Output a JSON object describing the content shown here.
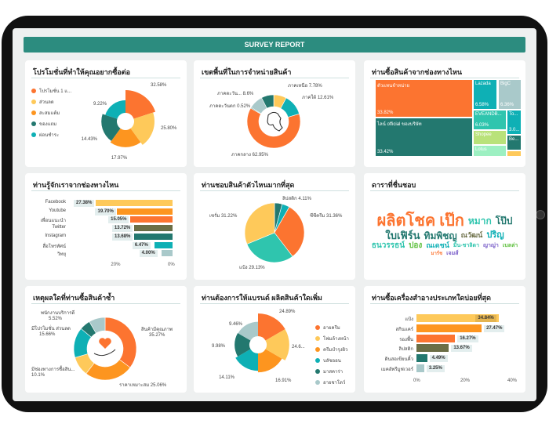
{
  "header": {
    "title": "SURVEY REPORT"
  },
  "colors": {
    "orange": "#fc7430",
    "yellow": "#fec95a",
    "amber": "#fd951f",
    "darkteal": "#23786f",
    "teal": "#0eb0b5",
    "grey": "#a9c9ca",
    "olive": "#6b6e46",
    "mint": "#2fc5ae",
    "lime": "#b9e27a",
    "palegreen": "#9df0c2"
  },
  "promo": {
    "title": "โปรโมชั่นที่ทำให้คุณอยากซื้อต่อ",
    "items": [
      {
        "label": "โปรโมชั่น 1 แ...",
        "value": 32.58,
        "pct": "32.58%",
        "color": "#fc7430"
      },
      {
        "label": "ส่วนลด",
        "value": 25.8,
        "pct": "25.80%",
        "color": "#fec95a"
      },
      {
        "label": "สะสมแต้ม",
        "value": 17.97,
        "pct": "17.97%",
        "color": "#fd951f"
      },
      {
        "label": "ของแถม",
        "value": 14.43,
        "pct": "14.43%",
        "color": "#23786f"
      },
      {
        "label": "ผ่อนชำระ",
        "value": 9.22,
        "pct": "9.22%",
        "color": "#0eb0b5"
      }
    ]
  },
  "region": {
    "title": "เขตพื้นที่ในการจำหน่ายสินค้า",
    "items": [
      {
        "label": "ภาคเหนือ 7.78%",
        "value": 7.78,
        "color": "#fec95a"
      },
      {
        "label": "ภาคใต้ 12.61%",
        "value": 12.61,
        "color": "#0eb0b5"
      },
      {
        "label": "ภาคกลาง 62.95%",
        "value": 62.95,
        "color": "#fc7430"
      },
      {
        "label": "ภาคตะวันตก 0.52%",
        "value": 0.52,
        "color": "#23786f"
      },
      {
        "label": "ภาคตะวัน... 8.6%",
        "value": 8.6,
        "color": "#a9c9ca"
      },
      {
        "label": "",
        "value": 7.54,
        "color": "#23786f"
      }
    ]
  },
  "channel": {
    "title": "ท่านซื้อสินค้าจากช่องทางไหน",
    "items": [
      {
        "label": "ตัวแทนจำหน่าย",
        "pct": "33.82%",
        "color": "#fc7430"
      },
      {
        "label": "ไลน์ official ของบริษัท",
        "pct": "33.42%",
        "color": "#23786f"
      },
      {
        "label": "Lazada",
        "pct": "6.58%",
        "color": "#0eb0b5"
      },
      {
        "label": "BigC",
        "pct": "6.36%",
        "color": "#a9c9ca"
      },
      {
        "label": "EVEANDB...",
        "pct": "6.03%",
        "color": "#2fc5ae"
      },
      {
        "label": "To...",
        "pct": "3.0...",
        "color": "#0eb0b5"
      },
      {
        "label": "Shopee",
        "pct": "",
        "color": "#b9e27a"
      },
      {
        "label": "Lotus",
        "pct": "",
        "color": "#9df0c2"
      },
      {
        "label": "Be...",
        "pct": "",
        "color": "#23786f"
      },
      {
        "label": "",
        "pct": "",
        "color": "#fec95a"
      }
    ]
  },
  "known": {
    "title": "ท่านรู้จักเราจากช่องทางไหน",
    "axis": [
      "20%",
      "0%"
    ],
    "items": [
      {
        "label": "Facebook",
        "value": 27.38,
        "pct": "27.38%",
        "color": "#fec95a"
      },
      {
        "label": "Youtube",
        "value": 19.7,
        "pct": "19.70%",
        "color": "#fd951f"
      },
      {
        "label": "เพื่อนแนะนำ",
        "value": 15.05,
        "pct": "15.05%",
        "color": "#fc7430"
      },
      {
        "label": "Twitter",
        "value": 13.72,
        "pct": "13.72%",
        "color": "#6b6e46"
      },
      {
        "label": "Instagram",
        "value": 13.68,
        "pct": "13.68%",
        "color": "#23786f"
      },
      {
        "label": "สื่อโทรทัศน์",
        "value": 6.47,
        "pct": "6.47%",
        "color": "#0eb0b5"
      },
      {
        "label": "วิทยุ",
        "value": 4.0,
        "pct": "4.00%",
        "color": "#a9c9ca"
      }
    ]
  },
  "fav": {
    "title": "ท่านชอบสินค้าตัวไหนมากที่สุด",
    "items": [
      {
        "label": "",
        "value": 4.18,
        "color": "#23786f"
      },
      {
        "label": "ลิปสติก 4.11%",
        "value": 4.11,
        "color": "#0eb0b5"
      },
      {
        "label": "ซีซีครีม 31.36%",
        "value": 31.36,
        "color": "#fc7430"
      },
      {
        "label": "แป้ง 29.13%",
        "value": 29.13,
        "color": "#2fc5ae"
      },
      {
        "label": "เซรั่ม 31.22%",
        "value": 31.22,
        "color": "#fec95a"
      }
    ]
  },
  "stars": {
    "title": "ดาราที่ชื่นชอบ",
    "words": [
      {
        "w": "ผลิตโชค",
        "c": "#fc7430",
        "s": 20
      },
      {
        "w": "เป๊ก",
        "c": "#fc7430",
        "s": 20
      },
      {
        "w": "หมาก",
        "c": "#2fc5ae",
        "s": 12
      },
      {
        "w": "โป๊ป",
        "c": "#23786f",
        "s": 12
      },
      {
        "w": "ใบเฟิร์น",
        "c": "#23786f",
        "s": 13
      },
      {
        "w": "ทิมพิชญ",
        "c": "#23786f",
        "s": 12
      },
      {
        "w": "ณวัฒน์",
        "c": "#6b6e46",
        "s": 9
      },
      {
        "w": "ปริญ",
        "c": "#0eb0b5",
        "s": 11
      },
      {
        "w": "ธนวรรธน์",
        "c": "#2fc5ae",
        "s": 10
      },
      {
        "w": "ปอง",
        "c": "#5bbf3a",
        "s": 10
      },
      {
        "w": "ณเดชน์",
        "c": "#0eb0b5",
        "s": 9
      },
      {
        "w": "มิ้น-ชาลิดา",
        "c": "#2fc5ae",
        "s": 7
      },
      {
        "w": "ญาญ่า",
        "c": "#7a5fc9",
        "s": 7
      },
      {
        "w": "เบลล่า",
        "c": "#5bbf3a",
        "s": 7
      },
      {
        "w": "มาร์ช",
        "c": "#fc7430",
        "s": 6
      },
      {
        "w": "เจมส์",
        "c": "#7a5fc9",
        "s": 7
      }
    ]
  },
  "reason": {
    "title": "เหตุผลใดที่ท่านซื้อสินค้าซ้ำ",
    "items": [
      {
        "label": "สินค้ามีคุณภาพ",
        "pct": "35.27%",
        "value": 35.27,
        "color": "#fc7430"
      },
      {
        "label": "ราคาเหมาะสม 25.06%",
        "pct": "",
        "value": 25.06,
        "color": "#fd951f"
      },
      {
        "label": "มีช่องทางการซื้อสิน...",
        "pct": "10.1%",
        "value": 10.1,
        "color": "#fec95a"
      },
      {
        "label": "มีโปรโมชั่น ส่วนลด",
        "pct": "15.66%",
        "value": 15.66,
        "color": "#0eb0b5"
      },
      {
        "label": "พนักงานบริการดี",
        "pct": "5.52%",
        "value": 5.52,
        "color": "#23786f"
      },
      {
        "label": "",
        "pct": "",
        "value": 8.39,
        "color": "#a9c9ca"
      }
    ]
  },
  "wish": {
    "title": "ท่านต้องการให้แบรนด์ ผลิตสินค้าใดเพิ่ม",
    "items": [
      {
        "label": "อายครีม",
        "value": 24.89,
        "pct": "24.89%",
        "color": "#fc7430"
      },
      {
        "label": "โฟมล้างหน้า",
        "value": 24.6,
        "pct": "24.6...",
        "color": "#fec95a"
      },
      {
        "label": "ครีมบำรุงผิว",
        "value": 16.91,
        "pct": "16.91%",
        "color": "#fd951f"
      },
      {
        "label": "บลัชออน",
        "value": 14.11,
        "pct": "14.11%",
        "color": "#0eb0b5"
      },
      {
        "label": "มาสคาร่า",
        "value": 9.98,
        "pct": "9.98%",
        "color": "#23786f"
      },
      {
        "label": "อายชาโดว์",
        "value": 9.46,
        "pct": "9.46%",
        "color": "#a9c9ca"
      }
    ]
  },
  "type": {
    "title": "ท่านซื้อเครื่องสำอางประเภทใดบ่อยที่สุด",
    "axis": [
      "0%",
      "20%",
      "40%"
    ],
    "items": [
      {
        "label": "แป้ง",
        "value": 34.84,
        "pct": "34.84%",
        "color": "#fec95a"
      },
      {
        "label": "สกินแคร์",
        "value": 27.47,
        "pct": "27.47%",
        "color": "#fd951f"
      },
      {
        "label": "รองพื้น",
        "value": 16.27,
        "pct": "16.27%",
        "color": "#fc7430"
      },
      {
        "label": "ลิปสติก",
        "value": 13.67,
        "pct": "13.67%",
        "color": "#6b6e46"
      },
      {
        "label": "ดินสอเขียนคิ้ว",
        "value": 4.49,
        "pct": "4.49%",
        "color": "#23786f"
      },
      {
        "label": "เมคอัพรีมูฟเวอร์",
        "value": 3.25,
        "pct": "3.25%",
        "color": "#a9c9ca"
      }
    ]
  }
}
